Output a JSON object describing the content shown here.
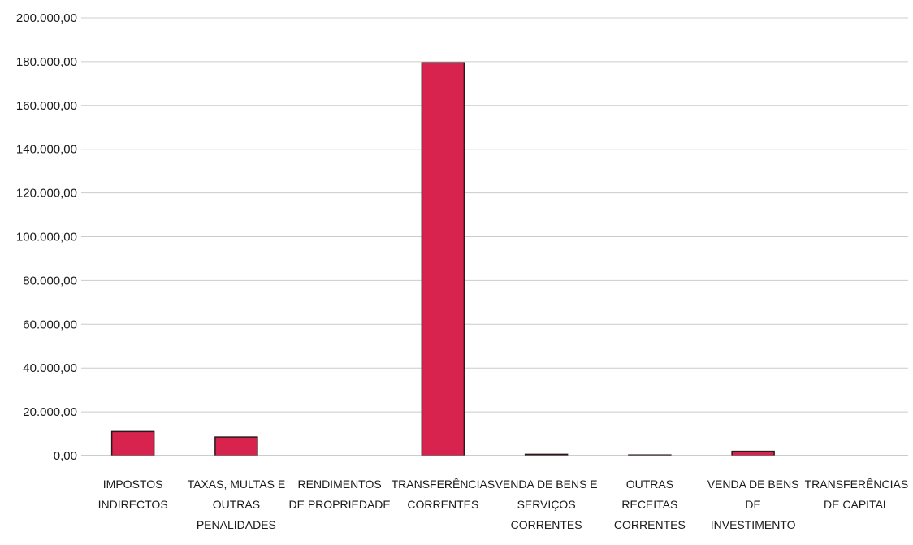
{
  "chart_data": {
    "type": "bar",
    "title": "",
    "xlabel": "",
    "ylabel": "",
    "categories": [
      [
        "IMPOSTOS",
        "INDIRECTOS"
      ],
      [
        "TAXAS, MULTAS E",
        "OUTRAS",
        "PENALIDADES"
      ],
      [
        "RENDIMENTOS",
        "DE PROPRIEDADE"
      ],
      [
        "TRANSFERÊNCIAS",
        "CORRENTES"
      ],
      [
        "VENDA DE BENS E",
        "SERVIÇOS",
        "CORRENTES"
      ],
      [
        "OUTRAS",
        "RECEITAS",
        "CORRENTES"
      ],
      [
        "VENDA DE BENS",
        "DE",
        "INVESTIMENTO"
      ],
      [
        "TRANSFERÊNCIAS",
        "DE CAPITAL"
      ]
    ],
    "values": [
      11000,
      8500,
      0,
      179500,
      600,
      300,
      2000,
      0
    ],
    "ylim": [
      0,
      200000
    ],
    "yticks": [
      0,
      20000,
      40000,
      60000,
      80000,
      100000,
      120000,
      140000,
      160000,
      180000,
      200000
    ],
    "ytick_labels": [
      "0,00",
      "20.000,00",
      "40.000,00",
      "60.000,00",
      "80.000,00",
      "100.000,00",
      "120.000,00",
      "140.000,00",
      "160.000,00",
      "180.000,00",
      "200.000,00"
    ],
    "grid": true,
    "legend": "none",
    "bar_color": "#d8234f",
    "bar_edge_color": "#2a1a1a",
    "grid_color": "#cccccc"
  }
}
